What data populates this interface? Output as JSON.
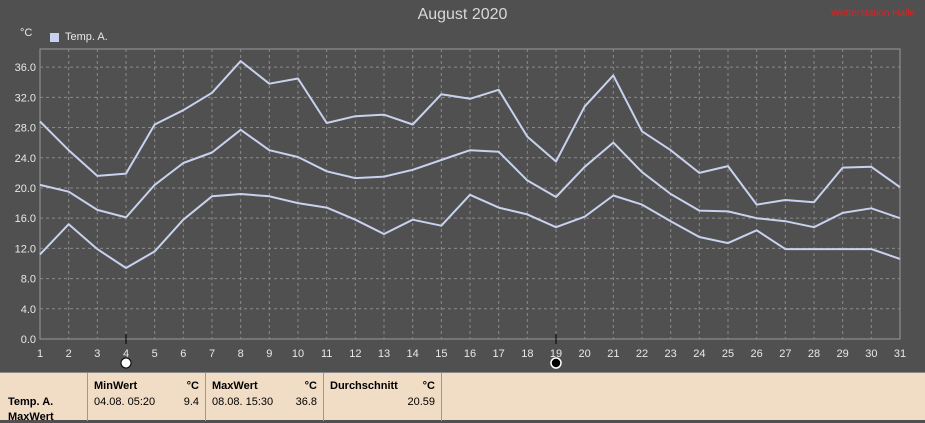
{
  "title": "August 2020",
  "watermark": "Wetterstation Halle",
  "unit_label": "°C",
  "legend_label": "Temp. A.",
  "colors": {
    "background": "#505050",
    "line": "#c8d2ee",
    "grid": "#8a8a8a",
    "panel": "#f1dcc5"
  },
  "chart_data": {
    "type": "line",
    "title": "August 2020",
    "xlabel": "",
    "ylabel": "°C",
    "x": [
      1,
      2,
      3,
      4,
      5,
      6,
      7,
      8,
      9,
      10,
      11,
      12,
      13,
      14,
      15,
      16,
      17,
      18,
      19,
      20,
      21,
      22,
      23,
      24,
      25,
      26,
      27,
      28,
      29,
      30,
      31
    ],
    "xlim": [
      1,
      31
    ],
    "ylim": [
      0,
      38.4
    ],
    "yticks": [
      0.0,
      4.0,
      8.0,
      12.0,
      16.0,
      20.0,
      24.0,
      28.0,
      32.0,
      36.0
    ],
    "ytick_labels": [
      "0.0",
      "4.0",
      "8.0",
      "12.0",
      "16.0",
      "20.0",
      "24.0",
      "28.0",
      "32.0",
      "36.0"
    ],
    "grid": true,
    "legend": "top-left",
    "series": [
      {
        "name": "Temp. A.",
        "role": "max",
        "values": [
          28.8,
          25.0,
          21.6,
          21.9,
          28.4,
          30.3,
          32.6,
          36.8,
          33.8,
          34.5,
          28.6,
          29.5,
          29.7,
          28.4,
          32.4,
          31.8,
          33.0,
          26.8,
          23.5,
          30.8,
          34.9,
          27.5,
          25.0,
          22.0,
          22.9,
          17.8,
          18.4,
          18.1,
          22.7,
          22.8,
          20.1
        ]
      },
      {
        "name": "Temp. A.",
        "role": "avg",
        "values": [
          20.4,
          19.5,
          17.1,
          16.1,
          20.4,
          23.3,
          24.7,
          27.7,
          25.0,
          24.1,
          22.2,
          21.3,
          21.5,
          22.4,
          23.7,
          25.0,
          24.8,
          21.0,
          18.8,
          22.8,
          26.0,
          22.1,
          19.2,
          17.0,
          16.9,
          16.0,
          15.6,
          14.8,
          16.7,
          17.3,
          16.0
        ]
      },
      {
        "name": "Temp. A.",
        "role": "min",
        "values": [
          11.2,
          15.2,
          11.9,
          9.4,
          11.6,
          15.8,
          18.9,
          19.2,
          18.9,
          18.0,
          17.4,
          15.8,
          13.9,
          15.8,
          15.0,
          19.1,
          17.4,
          16.5,
          14.8,
          16.2,
          19.0,
          17.8,
          15.6,
          13.5,
          12.7,
          14.4,
          11.9,
          11.9,
          11.9,
          11.9,
          10.6
        ]
      }
    ],
    "markers": [
      {
        "day": 4,
        "symbol": "open-circle"
      },
      {
        "day": 19,
        "symbol": "filled-circle"
      }
    ]
  },
  "stats": {
    "row_label_1": "Temp. A.",
    "row_label_2": "MaxWert",
    "min": {
      "header": "MinWert",
      "unit": "°C",
      "datetime": "04.08.  05:20",
      "value": "9.4"
    },
    "max": {
      "header": "MaxWert",
      "unit": "°C",
      "datetime": "08.08.  15:30",
      "value": "36.8"
    },
    "avg": {
      "header": "Durchschnitt",
      "unit": "°C",
      "value": "20.59"
    }
  }
}
